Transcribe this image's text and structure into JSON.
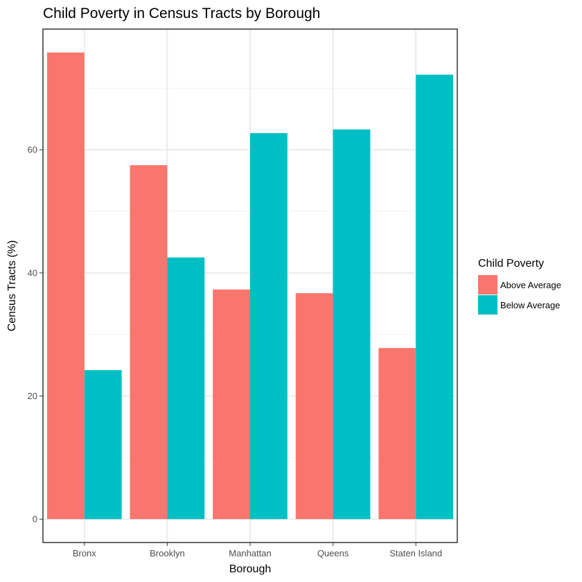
{
  "chart_data": {
    "type": "bar",
    "title": "Child Poverty in Census Tracts by Borough",
    "xlabel": "Borough",
    "ylabel": "Census Tracts (%)",
    "categories": [
      "Bronx",
      "Brooklyn",
      "Manhattan",
      "Queens",
      "Staten Island"
    ],
    "series": [
      {
        "name": "Above Average",
        "color": "#F8766D",
        "values": [
          75.8,
          57.5,
          37.3,
          36.7,
          27.8
        ]
      },
      {
        "name": "Below Average",
        "color": "#00BFC4",
        "values": [
          24.2,
          42.5,
          62.7,
          63.3,
          72.2
        ]
      }
    ],
    "ylim": [
      -3.8,
      79.6
    ],
    "yticks": [
      0,
      20,
      40,
      60
    ],
    "grid": true,
    "legend": {
      "title": "Child Poverty",
      "position": "right"
    }
  }
}
